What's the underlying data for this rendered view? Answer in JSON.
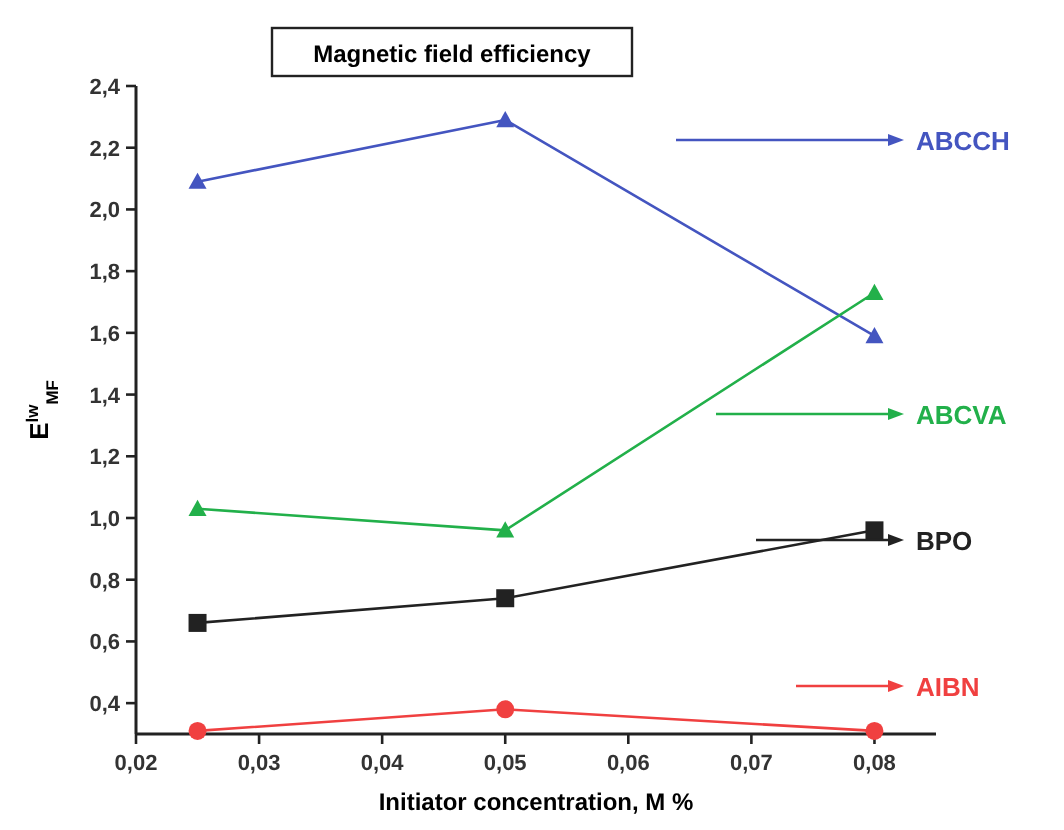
{
  "chart_data": {
    "type": "line",
    "title": "Magnetic field efficiency",
    "xlabel": "Initiator concentration, M %",
    "ylabel": "E$^{lw}$$_{MF}$",
    "x": [
      0.025,
      0.05,
      0.08
    ],
    "series": [
      {
        "name": "ABCCH",
        "color": "#4455c0",
        "values": [
          2.09,
          2.29,
          1.59
        ],
        "marker": "triangle"
      },
      {
        "name": "ABCVA",
        "color": "#22b04a",
        "values": [
          1.03,
          0.96,
          1.73
        ],
        "marker": "triangle"
      },
      {
        "name": "BPO",
        "color": "#222222",
        "values": [
          0.66,
          0.74,
          0.96
        ],
        "marker": "square"
      },
      {
        "name": "AIBN",
        "color": "#f04040",
        "values": [
          0.31,
          0.38,
          0.31
        ],
        "marker": "circle"
      }
    ],
    "xlim": [
      0.02,
      0.085
    ],
    "xticks": [
      {
        "value": 0.02,
        "label": "0,02"
      },
      {
        "value": 0.03,
        "label": "0,03"
      },
      {
        "value": 0.04,
        "label": "0,04"
      },
      {
        "value": 0.05,
        "label": "0,05"
      },
      {
        "value": 0.06,
        "label": "0,06"
      },
      {
        "value": 0.07,
        "label": "0,07"
      },
      {
        "value": 0.08,
        "label": "0,08"
      }
    ],
    "ylim": [
      0.3,
      2.4
    ],
    "yticks": [
      {
        "value": 0.4,
        "label": "0,4"
      },
      {
        "value": 0.6,
        "label": "0,6"
      },
      {
        "value": 0.8,
        "label": "0,8"
      },
      {
        "value": 1.0,
        "label": "1,0"
      },
      {
        "value": 1.2,
        "label": "1,2"
      },
      {
        "value": 1.4,
        "label": "1,4"
      },
      {
        "value": 1.6,
        "label": "1,6"
      },
      {
        "value": 1.8,
        "label": "1,8"
      },
      {
        "value": 2.0,
        "label": "2,0"
      },
      {
        "value": 2.2,
        "label": "2,2"
      },
      {
        "value": 2.4,
        "label": "2,4"
      }
    ],
    "grid": false,
    "legend": "right",
    "line_style": "solid"
  }
}
